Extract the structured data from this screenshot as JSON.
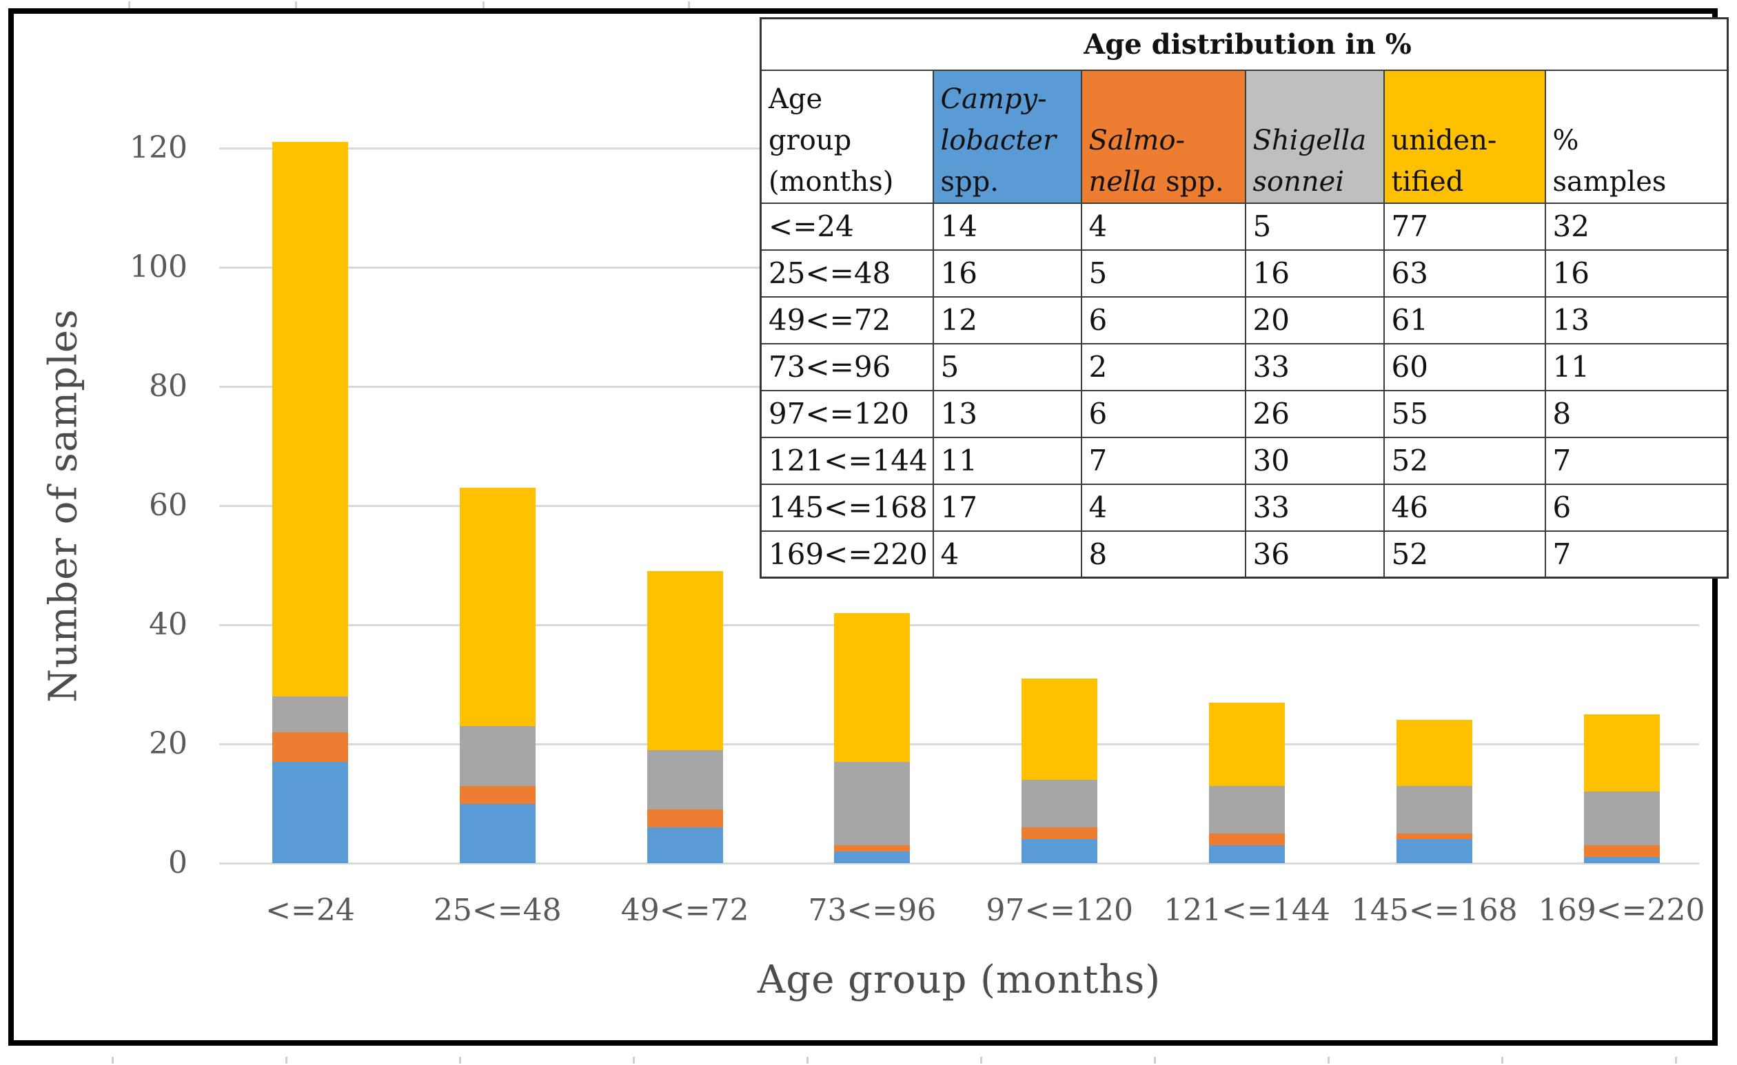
{
  "figure": {
    "background": "#ffffff",
    "frame_color": "#000000"
  },
  "chart_data": {
    "type": "bar",
    "stacked": true,
    "xlabel": "Age group (months)",
    "ylabel": "Number of samples",
    "ylim": [
      0,
      130
    ],
    "yticks": [
      0,
      20,
      40,
      60,
      80,
      100,
      120
    ],
    "grid": "horizontal",
    "gridline_color": "#d9d9d9",
    "tick_label_color": "#595959",
    "axis_title_color": "#4c4c4c",
    "categories": [
      "<=24",
      "25<=48",
      "49<=72",
      "73<=96",
      "97<=120",
      "121<=144",
      "145<=168",
      "169<=220"
    ],
    "series": [
      {
        "name": "Campylobacter spp.",
        "color": "#5B9BD5",
        "values": [
          17,
          10,
          6,
          2,
          4,
          3,
          4,
          1
        ]
      },
      {
        "name": "Salmonella spp.",
        "color": "#ED7D31",
        "values": [
          5,
          3,
          3,
          1,
          2,
          2,
          1,
          2
        ]
      },
      {
        "name": "Shigella sonnei",
        "color": "#A6A6A6",
        "values": [
          6,
          10,
          10,
          14,
          8,
          8,
          8,
          9
        ]
      },
      {
        "name": "unidentified",
        "color": "#FFC000",
        "values": [
          93,
          40,
          30,
          25,
          17,
          14,
          11,
          13
        ]
      }
    ],
    "bar_totals": [
      121,
      63,
      49,
      42,
      31,
      27,
      24,
      25
    ]
  },
  "table": {
    "title": "Age distribution in %",
    "header": [
      {
        "bg": "#ffffff",
        "lines": [
          [
            {
              "text": "Age",
              "italic": false
            }
          ],
          [
            {
              "text": "group",
              "italic": false
            }
          ],
          [
            {
              "text": "(months)",
              "italic": false
            }
          ]
        ]
      },
      {
        "bg": "#5B9BD5",
        "lines": [
          [
            {
              "text": "Campy-",
              "italic": true
            }
          ],
          [
            {
              "text": "lobacter",
              "italic": true
            }
          ],
          [
            {
              "text": "spp.",
              "italic": false
            }
          ]
        ]
      },
      {
        "bg": "#ED7D31",
        "lines": [
          [
            {
              "text": "Salmo-",
              "italic": true
            }
          ],
          [
            {
              "text": "nella",
              "italic": true
            },
            {
              "text": "  spp.",
              "italic": false
            }
          ]
        ]
      },
      {
        "bg": "#BFBFBF",
        "lines": [
          [
            {
              "text": "Shigella",
              "italic": true
            }
          ],
          [
            {
              "text": "sonnei",
              "italic": true
            }
          ]
        ]
      },
      {
        "bg": "#FFC000",
        "lines": [
          [
            {
              "text": "uniden-",
              "italic": false
            }
          ],
          [
            {
              "text": "tified",
              "italic": false
            }
          ]
        ]
      },
      {
        "bg": "#ffffff",
        "lines": [
          [
            {
              "text": "%",
              "italic": false
            }
          ],
          [
            {
              "text": "samples",
              "italic": false
            }
          ]
        ]
      }
    ],
    "rows": [
      [
        "<=24",
        "14",
        "4",
        "5",
        "77",
        "32"
      ],
      [
        "25<=48",
        "16",
        "5",
        "16",
        "63",
        "16"
      ],
      [
        "49<=72",
        "12",
        "6",
        "20",
        "61",
        "13"
      ],
      [
        "73<=96",
        "5",
        "2",
        "33",
        "60",
        "11"
      ],
      [
        "97<=120",
        "13",
        "6",
        "26",
        "55",
        "8"
      ],
      [
        "121<=144",
        "11",
        "7",
        "30",
        "52",
        "7"
      ],
      [
        "145<=168",
        "17",
        "4",
        "33",
        "46",
        "6"
      ],
      [
        "169<=220",
        "4",
        "8",
        "36",
        "52",
        "7"
      ]
    ]
  }
}
